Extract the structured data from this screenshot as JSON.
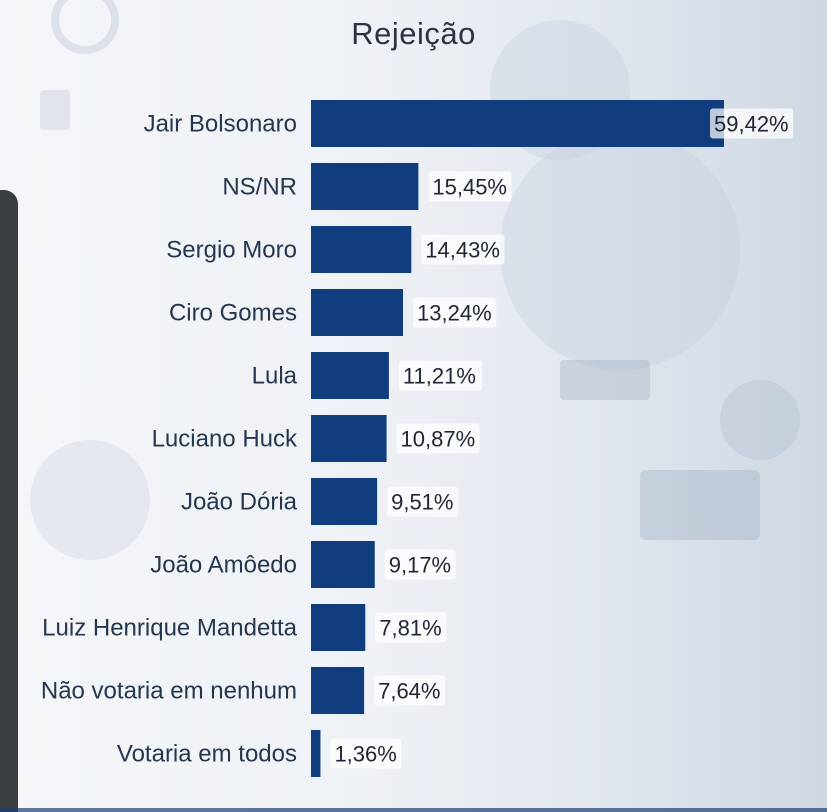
{
  "chart_data": {
    "type": "bar",
    "orientation": "horizontal",
    "title": "Rejeição",
    "categories": [
      "Jair Bolsonaro",
      "NS/NR",
      "Sergio Moro",
      "Ciro Gomes",
      "Lula",
      "Luciano Huck",
      "João Dória",
      "João Amôedo",
      "Luiz Henrique Mandetta",
      "Não votaria em nenhum",
      "Votaria em todos"
    ],
    "values": [
      59.42,
      15.45,
      14.43,
      13.24,
      11.21,
      10.87,
      9.51,
      9.17,
      7.81,
      7.64,
      1.36
    ],
    "value_labels": [
      "59,42%",
      "15,45%",
      "14,43%",
      "13,24%",
      "11,21%",
      "10,87%",
      "9,51%",
      "9,17%",
      "7,81%",
      "7,64%",
      "1,36%"
    ],
    "unit": "%",
    "xlim": [
      0,
      59.42
    ],
    "grid": false,
    "legend": "none",
    "bar_color": "#0f3d7e"
  }
}
